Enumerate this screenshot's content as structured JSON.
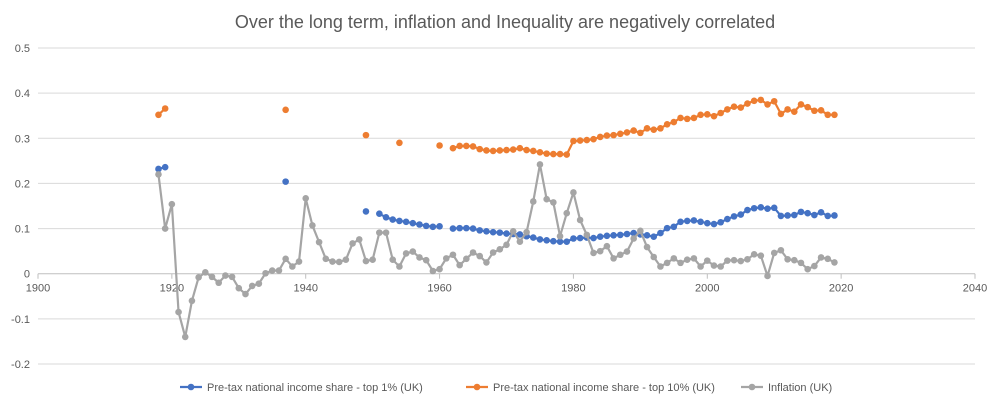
{
  "chart_data": {
    "type": "scatter",
    "title": "Over the long term, inflation and Inequality are negatively correlated",
    "xlabel": "",
    "ylabel": "",
    "xlim": [
      1900,
      2040
    ],
    "ylim": [
      -0.2,
      0.5
    ],
    "x_ticks": [
      "1900",
      "1920",
      "1940",
      "1960",
      "1980",
      "2000",
      "2020",
      "2040"
    ],
    "y_ticks": [
      "-0.2",
      "-0.1",
      "0",
      "0.1",
      "0.2",
      "0.3",
      "0.4",
      "0.5"
    ],
    "grid": "horizontal",
    "legend_position": "bottom",
    "series": [
      {
        "name": "Pre-tax national income share - top 1% (UK)",
        "color": "#4472c4",
        "style": "markers-with-line",
        "x": [
          1918,
          1919,
          1937,
          1949,
          1951,
          1952,
          1953,
          1954,
          1955,
          1956,
          1957,
          1958,
          1959,
          1960,
          1962,
          1963,
          1964,
          1965,
          1966,
          1967,
          1968,
          1969,
          1970,
          1971,
          1972,
          1973,
          1974,
          1975,
          1976,
          1977,
          1978,
          1979,
          1980,
          1981,
          1982,
          1983,
          1984,
          1985,
          1986,
          1987,
          1988,
          1989,
          1990,
          1991,
          1992,
          1993,
          1994,
          1995,
          1996,
          1997,
          1998,
          1999,
          2000,
          2001,
          2002,
          2003,
          2004,
          2005,
          2006,
          2007,
          2008,
          2009,
          2010,
          2011,
          2012,
          2013,
          2014,
          2015,
          2016,
          2017,
          2018,
          2019
        ],
        "y": [
          0.232,
          0.236,
          0.204,
          0.138,
          0.133,
          0.125,
          0.12,
          0.117,
          0.115,
          0.112,
          0.109,
          0.106,
          0.104,
          0.105,
          0.1,
          0.101,
          0.101,
          0.1,
          0.096,
          0.094,
          0.092,
          0.091,
          0.089,
          0.088,
          0.087,
          0.083,
          0.08,
          0.076,
          0.074,
          0.072,
          0.071,
          0.071,
          0.078,
          0.079,
          0.08,
          0.079,
          0.082,
          0.084,
          0.085,
          0.086,
          0.088,
          0.09,
          0.087,
          0.085,
          0.082,
          0.09,
          0.101,
          0.104,
          0.115,
          0.117,
          0.118,
          0.115,
          0.112,
          0.11,
          0.114,
          0.121,
          0.127,
          0.131,
          0.141,
          0.145,
          0.147,
          0.144,
          0.146,
          0.128,
          0.129,
          0.13,
          0.137,
          0.134,
          0.13,
          0.136,
          0.128,
          0.129
        ]
      },
      {
        "name": "Pre-tax national income share - top 10% (UK)",
        "color": "#ed7d31",
        "style": "markers-with-line",
        "x": [
          1918,
          1919,
          1937,
          1949,
          1954,
          1960,
          1962,
          1963,
          1964,
          1965,
          1966,
          1967,
          1968,
          1969,
          1970,
          1971,
          1972,
          1973,
          1974,
          1975,
          1976,
          1977,
          1978,
          1979,
          1980,
          1981,
          1982,
          1983,
          1984,
          1985,
          1986,
          1987,
          1988,
          1989,
          1990,
          1991,
          1992,
          1993,
          1994,
          1995,
          1996,
          1997,
          1998,
          1999,
          2000,
          2001,
          2002,
          2003,
          2004,
          2005,
          2006,
          2007,
          2008,
          2009,
          2010,
          2011,
          2012,
          2013,
          2014,
          2015,
          2016,
          2017,
          2018,
          2019
        ],
        "y": [
          0.352,
          0.366,
          0.363,
          0.307,
          0.29,
          0.284,
          0.278,
          0.283,
          0.283,
          0.282,
          0.276,
          0.273,
          0.272,
          0.273,
          0.274,
          0.275,
          0.278,
          0.274,
          0.272,
          0.269,
          0.266,
          0.265,
          0.265,
          0.264,
          0.294,
          0.295,
          0.296,
          0.298,
          0.303,
          0.306,
          0.307,
          0.31,
          0.313,
          0.317,
          0.312,
          0.322,
          0.319,
          0.322,
          0.331,
          0.336,
          0.345,
          0.343,
          0.345,
          0.352,
          0.353,
          0.349,
          0.356,
          0.364,
          0.37,
          0.368,
          0.377,
          0.383,
          0.385,
          0.375,
          0.382,
          0.354,
          0.364,
          0.359,
          0.375,
          0.369,
          0.361,
          0.362,
          0.352,
          0.352
        ]
      },
      {
        "name": "Inflation (UK)",
        "color": "#a5a5a5",
        "style": "markers-with-line",
        "x": [
          1918,
          1919,
          1920,
          1921,
          1922,
          1923,
          1924,
          1925,
          1926,
          1927,
          1928,
          1929,
          1930,
          1931,
          1932,
          1933,
          1934,
          1935,
          1936,
          1937,
          1938,
          1939,
          1940,
          1941,
          1942,
          1943,
          1944,
          1945,
          1946,
          1947,
          1948,
          1949,
          1950,
          1951,
          1952,
          1953,
          1954,
          1955,
          1956,
          1957,
          1958,
          1959,
          1960,
          1961,
          1962,
          1963,
          1964,
          1965,
          1966,
          1967,
          1968,
          1969,
          1970,
          1971,
          1972,
          1973,
          1974,
          1975,
          1976,
          1977,
          1978,
          1979,
          1980,
          1981,
          1982,
          1983,
          1984,
          1985,
          1986,
          1987,
          1988,
          1989,
          1990,
          1991,
          1992,
          1993,
          1994,
          1995,
          1996,
          1997,
          1998,
          1999,
          2000,
          2001,
          2002,
          2003,
          2004,
          2005,
          2006,
          2007,
          2008,
          2009,
          2010,
          2011,
          2012,
          2013,
          2014,
          2015,
          2016,
          2017,
          2018,
          2019
        ],
        "y": [
          0.22,
          0.1,
          0.154,
          -0.085,
          -0.14,
          -0.06,
          -0.008,
          0.003,
          -0.007,
          -0.02,
          -0.004,
          -0.007,
          -0.032,
          -0.045,
          -0.027,
          -0.022,
          0.001,
          0.007,
          0.007,
          0.033,
          0.016,
          0.027,
          0.167,
          0.107,
          0.07,
          0.033,
          0.027,
          0.026,
          0.031,
          0.067,
          0.076,
          0.028,
          0.031,
          0.091,
          0.091,
          0.031,
          0.016,
          0.045,
          0.049,
          0.036,
          0.03,
          0.006,
          0.01,
          0.034,
          0.042,
          0.019,
          0.033,
          0.047,
          0.039,
          0.025,
          0.047,
          0.054,
          0.064,
          0.094,
          0.071,
          0.092,
          0.16,
          0.242,
          0.165,
          0.158,
          0.083,
          0.134,
          0.18,
          0.119,
          0.086,
          0.046,
          0.05,
          0.061,
          0.034,
          0.042,
          0.049,
          0.078,
          0.095,
          0.059,
          0.037,
          0.016,
          0.024,
          0.034,
          0.024,
          0.031,
          0.034,
          0.016,
          0.029,
          0.018,
          0.016,
          0.029,
          0.03,
          0.028,
          0.032,
          0.043,
          0.04,
          -0.005,
          0.046,
          0.052,
          0.032,
          0.03,
          0.024,
          0.01,
          0.017,
          0.036,
          0.033,
          0.025
        ]
      }
    ]
  }
}
